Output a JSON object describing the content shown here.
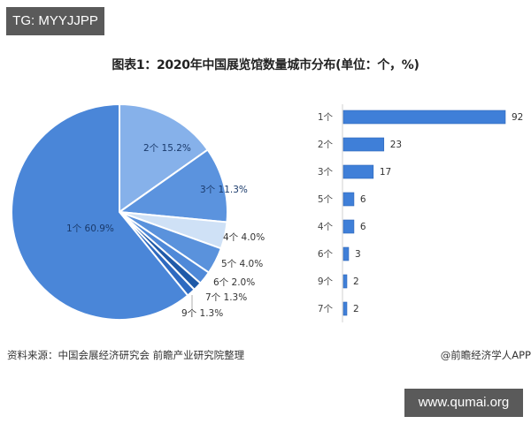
{
  "watermark_top": "TG: MYYJJPP",
  "watermark_bottom": "www.qumai.org",
  "footer": {
    "source": "资料来源：中国会展经济研究会 前瞻产业研究院整理",
    "credit": "@前瞻经济学人APP"
  },
  "colors": {
    "pie": [
      "#4a86d8",
      "#86b1ea",
      "#5b93de",
      "#cfe1f6",
      "#5a92dc",
      "#4f89d8",
      "#1f5aa8",
      "#2e6ac0"
    ],
    "bar": "#3f7fd8",
    "label_dark": "#1a3a6b"
  },
  "chart_data": [
    {
      "type": "pie",
      "title": "图表1：2020年中国展览馆数量城市分布(单位：个，%)",
      "categories": [
        "1个",
        "2个",
        "3个",
        "4个",
        "5个",
        "6个",
        "7个",
        "9个"
      ],
      "values": [
        60.9,
        15.2,
        11.3,
        4.0,
        4.0,
        2.0,
        1.3,
        1.3
      ],
      "labels": [
        "1个 60.9%",
        "2个 15.2%",
        "3个 11.3%",
        "4个 4.0%",
        "5个 4.0%",
        "6个 2.0%",
        "7个 1.3%",
        "9个 1.3%"
      ],
      "unit": "%"
    },
    {
      "type": "bar",
      "orientation": "horizontal",
      "categories": [
        "1个",
        "2个",
        "3个",
        "5个",
        "4个",
        "6个",
        "9个",
        "7个"
      ],
      "values": [
        92,
        23,
        17,
        6,
        6,
        3,
        2,
        2
      ],
      "xlabel": "",
      "ylabel": "",
      "grid": false
    }
  ]
}
